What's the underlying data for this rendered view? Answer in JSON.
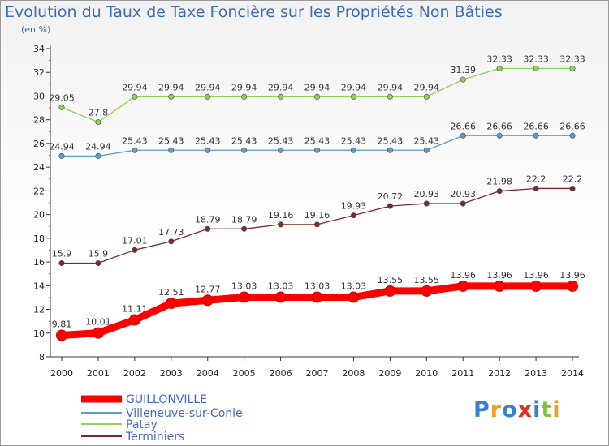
{
  "header": {
    "title": "Evolution du Taux de Taxe Foncière sur les Propriétés Non Bâties",
    "unit": "(en %)"
  },
  "logo": {
    "p": "P",
    "r": "r",
    "o": "o",
    "x": "x",
    "i": "i",
    "t": "t",
    "i2": "i"
  },
  "chart_data": {
    "type": "line",
    "title": "Evolution du Taux de Taxe Foncière sur les Propriétés Non Bâties",
    "ylabel": "(en %)",
    "xlabel": "",
    "ylim": [
      8,
      34
    ],
    "yticks": [
      8,
      10,
      12,
      14,
      16,
      18,
      20,
      22,
      24,
      26,
      28,
      30,
      32,
      34
    ],
    "x": [
      "2000",
      "2001",
      "2002",
      "2003",
      "2004",
      "2005",
      "2006",
      "2007",
      "2008",
      "2009",
      "2010",
      "2011",
      "2012",
      "2013",
      "2014"
    ],
    "grid": false,
    "legend_position": "bottom-left",
    "series": [
      {
        "name": "GUILLONVILLE",
        "color": "#ff0000",
        "values": [
          9.81,
          10.01,
          11.11,
          12.51,
          12.77,
          13.03,
          13.03,
          13.03,
          13.03,
          13.55,
          13.55,
          13.96,
          13.96,
          13.96,
          13.96
        ],
        "labels": [
          "9.81",
          "10.01",
          "11.11",
          "12.51",
          "12.77",
          "13.03",
          "13.03",
          "13.03",
          "13.03",
          "13.55",
          "13.55",
          "13.96",
          "13.96",
          "13.96",
          "13.96"
        ]
      },
      {
        "name": "Villeneuve-sur-Conie",
        "color": "#5b9bd5",
        "values": [
          24.94,
          24.94,
          25.43,
          25.43,
          25.43,
          25.43,
          25.43,
          25.43,
          25.43,
          25.43,
          25.43,
          26.66,
          26.66,
          26.66,
          26.66
        ],
        "labels": [
          "24.94",
          "24.94",
          "25.43",
          "25.43",
          "25.43",
          "25.43",
          "25.43",
          "25.43",
          "25.43",
          "25.43",
          "25.43",
          "26.66",
          "26.66",
          "26.66",
          "26.66"
        ]
      },
      {
        "name": "Patay",
        "color": "#8fd15a",
        "values": [
          29.05,
          27.8,
          29.94,
          29.94,
          29.94,
          29.94,
          29.94,
          29.94,
          29.94,
          29.94,
          29.94,
          31.39,
          32.33,
          32.33,
          32.33
        ],
        "labels": [
          "29.05",
          "27.8",
          "29.94",
          "29.94",
          "29.94",
          "29.94",
          "29.94",
          "29.94",
          "29.94",
          "29.94",
          "29.94",
          "31.39",
          "32.33",
          "32.33",
          "32.33"
        ]
      },
      {
        "name": "Terminiers",
        "color": "#7a2a2a",
        "values": [
          15.9,
          15.9,
          17.01,
          17.73,
          18.79,
          18.79,
          19.16,
          19.16,
          19.93,
          20.72,
          20.93,
          20.93,
          21.98,
          22.2,
          22.2
        ],
        "labels": [
          "15.9",
          "15.9",
          "17.01",
          "17.73",
          "18.79",
          "18.79",
          "19.16",
          "19.16",
          "19.93",
          "20.72",
          "20.93",
          "20.93",
          "21.98",
          "22.2",
          "22.2"
        ]
      }
    ]
  }
}
